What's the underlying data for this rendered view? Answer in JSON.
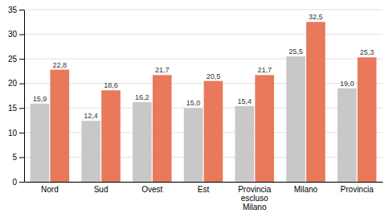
{
  "chart_data": {
    "type": "bar",
    "categories": [
      "Nord",
      "Sud",
      "Ovest",
      "Est",
      "Provincia\nescluso\nMilano",
      "Milano",
      "Provincia"
    ],
    "series": [
      {
        "color": "#c8c8c8",
        "values": [
          15.9,
          12.4,
          16.2,
          15.0,
          15.4,
          25.5,
          19.0
        ],
        "value_labels": [
          "15,9",
          "12,4",
          "16,2",
          "15,0",
          "15,4",
          "25,5",
          "19,0"
        ]
      },
      {
        "color": "#e8795a",
        "values": [
          22.8,
          18.6,
          21.7,
          20.5,
          21.7,
          32.5,
          25.3
        ],
        "value_labels": [
          "22,8",
          "18,6",
          "21,7",
          "20,5",
          "21,7",
          "32,5",
          "25,3"
        ]
      }
    ],
    "ylim": [
      0,
      35
    ],
    "yticks": [
      0,
      5,
      10,
      15,
      20,
      25,
      30,
      35
    ],
    "grid": true,
    "data_labels": true
  }
}
